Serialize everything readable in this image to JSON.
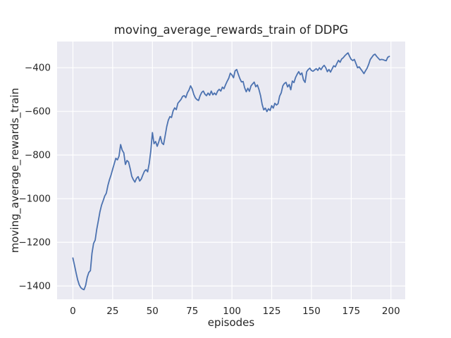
{
  "chart_data": {
    "type": "line",
    "title": "moving_average_rewards_train of DDPG",
    "xlabel": "episodes",
    "ylabel": "moving_average_rewards_train",
    "style": "seaborn-darkgrid",
    "grid": true,
    "legend": "none",
    "xlim": [
      -9.95,
      208.95
    ],
    "ylim": [
      -1461,
      -280
    ],
    "xticks": {
      "values": [
        0,
        25,
        50,
        75,
        100,
        125,
        150,
        175,
        200
      ],
      "labels": [
        "0",
        "25",
        "50",
        "75",
        "100",
        "125",
        "150",
        "175",
        "200"
      ]
    },
    "yticks": {
      "values": [
        -400,
        -600,
        -800,
        -1000,
        -1200,
        -1400
      ],
      "labels": [
        "−400",
        "−600",
        "−800",
        "−1000",
        "−1200",
        "−1400"
      ]
    },
    "colors": {
      "line": "#4C72B0",
      "plot_bg": "#EAEAF2",
      "grid": "#FFFFFF",
      "text": "#262626"
    },
    "series": [
      {
        "name": "moving_average_rewards_train",
        "x_start": 0,
        "x_step": 1,
        "y": [
          -1272,
          -1305,
          -1340,
          -1372,
          -1395,
          -1408,
          -1414,
          -1417,
          -1398,
          -1360,
          -1338,
          -1330,
          -1250,
          -1205,
          -1190,
          -1140,
          -1101,
          -1060,
          -1030,
          -1010,
          -988,
          -975,
          -940,
          -913,
          -891,
          -865,
          -840,
          -815,
          -822,
          -805,
          -752,
          -778,
          -790,
          -843,
          -825,
          -832,
          -862,
          -897,
          -913,
          -924,
          -907,
          -899,
          -919,
          -910,
          -891,
          -874,
          -867,
          -877,
          -838,
          -780,
          -697,
          -748,
          -738,
          -760,
          -740,
          -715,
          -745,
          -752,
          -712,
          -670,
          -640,
          -624,
          -628,
          -598,
          -584,
          -592,
          -563,
          -554,
          -545,
          -531,
          -528,
          -537,
          -515,
          -502,
          -483,
          -497,
          -522,
          -538,
          -546,
          -550,
          -528,
          -513,
          -507,
          -521,
          -528,
          -516,
          -526,
          -507,
          -524,
          -516,
          -524,
          -507,
          -499,
          -507,
          -489,
          -496,
          -478,
          -462,
          -448,
          -425,
          -433,
          -446,
          -414,
          -408,
          -430,
          -450,
          -465,
          -463,
          -492,
          -510,
          -494,
          -508,
          -483,
          -474,
          -466,
          -487,
          -479,
          -500,
          -528,
          -568,
          -593,
          -585,
          -601,
          -588,
          -596,
          -574,
          -585,
          -563,
          -571,
          -565,
          -530,
          -515,
          -483,
          -472,
          -467,
          -488,
          -477,
          -501,
          -461,
          -468,
          -445,
          -430,
          -418,
          -432,
          -424,
          -456,
          -467,
          -418,
          -408,
          -402,
          -413,
          -416,
          -410,
          -404,
          -412,
          -400,
          -409,
          -397,
          -389,
          -400,
          -418,
          -408,
          -420,
          -405,
          -391,
          -396,
          -380,
          -366,
          -375,
          -360,
          -354,
          -345,
          -338,
          -332,
          -348,
          -362,
          -367,
          -362,
          -381,
          -400,
          -396,
          -406,
          -416,
          -427,
          -414,
          -402,
          -384,
          -362,
          -352,
          -342,
          -338,
          -348,
          -356,
          -364,
          -362,
          -363,
          -366,
          -368,
          -352,
          -348
        ]
      }
    ]
  }
}
